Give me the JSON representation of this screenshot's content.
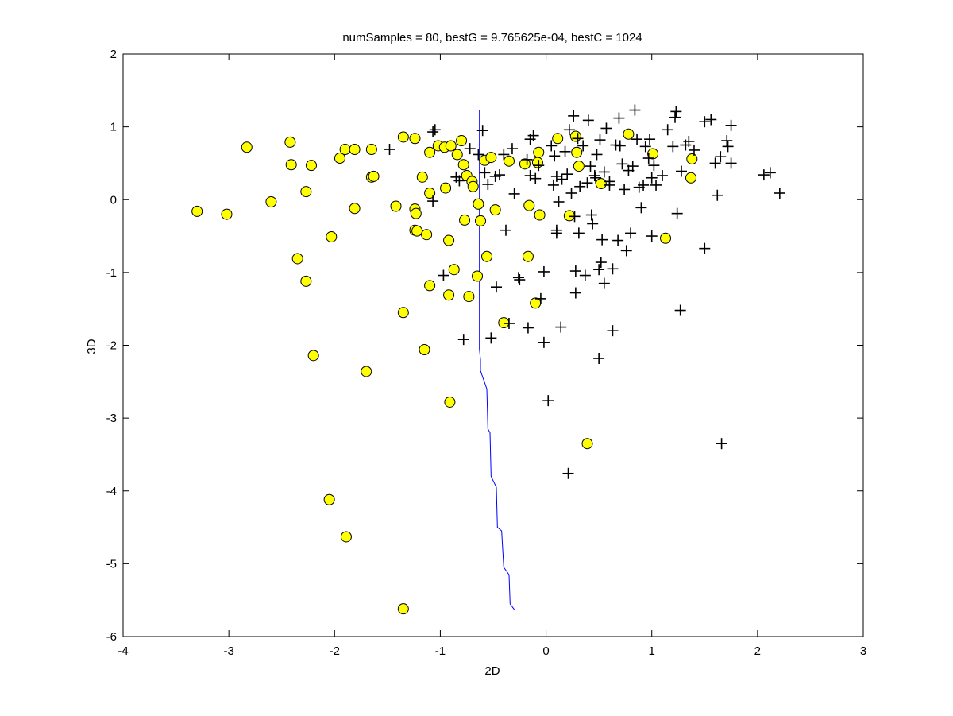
{
  "chart_data": {
    "type": "scatter",
    "title": "numSamples = 80, bestG = 9.765625e-04, bestC = 1024",
    "xlabel": "2D",
    "ylabel": "3D",
    "xlim": [
      -4,
      3
    ],
    "ylim": [
      -6,
      2
    ],
    "x_ticks": [
      "-4",
      "-3",
      "-2",
      "-1",
      "0",
      "1",
      "2",
      "3"
    ],
    "y_ticks": [
      "-6",
      "-5",
      "-4",
      "-3",
      "-2",
      "-1",
      "0",
      "1",
      "2"
    ],
    "colors": {
      "circles": "#ffff00",
      "circle_edge": "#000000",
      "plus": "#000000",
      "boundary": "#0000ff"
    },
    "grid": false,
    "series": [
      {
        "marker": "circle",
        "points": [
          [
            -3.3,
            -0.16
          ],
          [
            -3.02,
            -0.2
          ],
          [
            -2.83,
            0.72
          ],
          [
            -2.6,
            -0.03
          ],
          [
            -2.42,
            0.79
          ],
          [
            -2.41,
            0.48
          ],
          [
            -2.35,
            -0.81
          ],
          [
            -2.27,
            0.11
          ],
          [
            -2.27,
            -1.12
          ],
          [
            -2.22,
            0.47
          ],
          [
            -2.2,
            -2.14
          ],
          [
            -2.05,
            -4.12
          ],
          [
            -2.03,
            -0.51
          ],
          [
            -1.95,
            0.57
          ],
          [
            -1.9,
            0.69
          ],
          [
            -1.89,
            -4.63
          ],
          [
            -1.81,
            0.69
          ],
          [
            -1.81,
            -0.12
          ],
          [
            -1.7,
            -2.36
          ],
          [
            -1.65,
            0.69
          ],
          [
            -1.65,
            0.31
          ],
          [
            -1.63,
            0.32
          ],
          [
            -1.42,
            -0.09
          ],
          [
            -1.35,
            0.86
          ],
          [
            -1.35,
            -1.55
          ],
          [
            -1.35,
            -5.62
          ],
          [
            -1.24,
            0.84
          ],
          [
            -1.24,
            -0.13
          ],
          [
            -1.23,
            -0.19
          ],
          [
            -1.24,
            -0.42
          ],
          [
            -1.22,
            -0.43
          ],
          [
            -1.17,
            0.31
          ],
          [
            -1.15,
            -2.06
          ],
          [
            -1.13,
            -0.48
          ],
          [
            -1.1,
            -1.18
          ],
          [
            -1.1,
            0.09
          ],
          [
            -1.1,
            0.65
          ],
          [
            -1.02,
            0.74
          ],
          [
            -0.96,
            0.72
          ],
          [
            -0.95,
            0.16
          ],
          [
            -0.92,
            -0.56
          ],
          [
            -0.92,
            -1.31
          ],
          [
            -0.91,
            -2.78
          ],
          [
            -0.9,
            0.74
          ],
          [
            -0.87,
            -0.96
          ],
          [
            -0.84,
            0.62
          ],
          [
            -0.8,
            0.81
          ],
          [
            -0.78,
            0.48
          ],
          [
            -0.77,
            -0.28
          ],
          [
            -0.75,
            0.33
          ],
          [
            -0.73,
            -1.33
          ],
          [
            -0.7,
            0.25
          ],
          [
            -0.69,
            0.18
          ],
          [
            -0.65,
            -1.05
          ],
          [
            -0.64,
            -0.06
          ],
          [
            -0.62,
            -0.29
          ],
          [
            -0.58,
            0.54
          ],
          [
            -0.56,
            -0.78
          ],
          [
            -0.52,
            0.58
          ],
          [
            -0.48,
            -0.14
          ],
          [
            -0.4,
            -1.69
          ],
          [
            -0.35,
            0.53
          ],
          [
            -0.2,
            0.49
          ],
          [
            -0.16,
            -0.08
          ],
          [
            -0.17,
            -0.78
          ],
          [
            -0.1,
            -1.42
          ],
          [
            -0.08,
            0.51
          ],
          [
            -0.07,
            0.65
          ],
          [
            -0.06,
            -0.21
          ],
          [
            0.11,
            0.84
          ],
          [
            0.22,
            -0.22
          ],
          [
            0.28,
            0.87
          ],
          [
            0.29,
            0.65
          ],
          [
            0.31,
            0.46
          ],
          [
            0.39,
            -3.35
          ],
          [
            0.52,
            0.22
          ],
          [
            0.78,
            0.9
          ],
          [
            1.01,
            0.63
          ],
          [
            1.13,
            -0.53
          ],
          [
            1.37,
            0.3
          ],
          [
            1.38,
            0.56
          ]
        ]
      },
      {
        "marker": "plus",
        "points": [
          [
            -1.48,
            0.69
          ],
          [
            -1.07,
            0.93
          ],
          [
            -1.05,
            0.96
          ],
          [
            -1.07,
            -0.02
          ],
          [
            -0.97,
            -1.04
          ],
          [
            -0.85,
            0.31
          ],
          [
            -0.82,
            0.26
          ],
          [
            -0.78,
            -1.92
          ],
          [
            -0.72,
            0.7
          ],
          [
            -0.64,
            0.62
          ],
          [
            -0.6,
            0.95
          ],
          [
            -0.58,
            0.37
          ],
          [
            -0.55,
            0.21
          ],
          [
            -0.48,
            0.32
          ],
          [
            -0.52,
            -1.9
          ],
          [
            -0.47,
            -1.2
          ],
          [
            -0.44,
            0.34
          ],
          [
            -0.4,
            0.62
          ],
          [
            -0.38,
            -0.42
          ],
          [
            -0.35,
            -1.7
          ],
          [
            -0.32,
            0.7
          ],
          [
            -0.3,
            0.08
          ],
          [
            -0.26,
            -1.07
          ],
          [
            -0.25,
            -1.1
          ],
          [
            -0.18,
            0.55
          ],
          [
            -0.17,
            -1.76
          ],
          [
            -0.15,
            0.83
          ],
          [
            -0.15,
            0.33
          ],
          [
            -0.12,
            0.88
          ],
          [
            -0.1,
            0.29
          ],
          [
            -0.07,
            0.47
          ],
          [
            -0.05,
            -1.36
          ],
          [
            -0.02,
            -0.99
          ],
          [
            -0.02,
            -1.96
          ],
          [
            0.02,
            -2.76
          ],
          [
            0.05,
            0.74
          ],
          [
            0.07,
            0.2
          ],
          [
            0.08,
            0.6
          ],
          [
            0.1,
            0.32
          ],
          [
            0.1,
            -0.46
          ],
          [
            0.1,
            -0.42
          ],
          [
            0.12,
            -0.03
          ],
          [
            0.14,
            -1.75
          ],
          [
            0.15,
            0.28
          ],
          [
            0.18,
            0.66
          ],
          [
            0.2,
            0.35
          ],
          [
            0.21,
            -3.76
          ],
          [
            0.22,
            0.96
          ],
          [
            0.24,
            0.09
          ],
          [
            0.26,
            1.15
          ],
          [
            0.27,
            -0.23
          ],
          [
            0.28,
            -0.98
          ],
          [
            0.28,
            -1.28
          ],
          [
            0.3,
            0.84
          ],
          [
            0.31,
            -0.46
          ],
          [
            0.32,
            0.18
          ],
          [
            0.35,
            0.74
          ],
          [
            0.37,
            -1.04
          ],
          [
            0.39,
            0.23
          ],
          [
            0.4,
            1.09
          ],
          [
            0.42,
            0.46
          ],
          [
            0.43,
            -0.21
          ],
          [
            0.44,
            -0.33
          ],
          [
            0.46,
            0.33
          ],
          [
            0.47,
            0.3
          ],
          [
            0.48,
            0.62
          ],
          [
            0.5,
            -0.96
          ],
          [
            0.5,
            -2.18
          ],
          [
            0.51,
            0.82
          ],
          [
            0.52,
            -0.86
          ],
          [
            0.53,
            -0.55
          ],
          [
            0.55,
            0.38
          ],
          [
            0.55,
            -1.15
          ],
          [
            0.57,
            0.98
          ],
          [
            0.6,
            0.25
          ],
          [
            0.6,
            0.2
          ],
          [
            0.63,
            -0.95
          ],
          [
            0.63,
            -1.8
          ],
          [
            0.66,
            0.75
          ],
          [
            0.68,
            -0.56
          ],
          [
            0.69,
            1.12
          ],
          [
            0.7,
            0.74
          ],
          [
            0.72,
            0.49
          ],
          [
            0.74,
            0.14
          ],
          [
            0.76,
            -0.7
          ],
          [
            0.78,
            0.4
          ],
          [
            0.8,
            -0.46
          ],
          [
            0.82,
            0.46
          ],
          [
            0.84,
            1.23
          ],
          [
            0.86,
            0.83
          ],
          [
            0.88,
            0.17
          ],
          [
            0.9,
            -0.11
          ],
          [
            0.92,
            0.2
          ],
          [
            0.94,
            0.73
          ],
          [
            0.97,
            0.57
          ],
          [
            0.98,
            0.83
          ],
          [
            1.0,
            -0.5
          ],
          [
            1.0,
            0.3
          ],
          [
            1.02,
            0.47
          ],
          [
            1.04,
            0.2
          ],
          [
            1.1,
            0.33
          ],
          [
            1.15,
            0.96
          ],
          [
            1.2,
            0.73
          ],
          [
            1.22,
            1.13
          ],
          [
            1.23,
            1.21
          ],
          [
            1.24,
            -0.19
          ],
          [
            1.27,
            -1.52
          ],
          [
            1.28,
            0.39
          ],
          [
            1.32,
            0.75
          ],
          [
            1.35,
            0.8
          ],
          [
            1.4,
            0.68
          ],
          [
            1.5,
            1.07
          ],
          [
            1.5,
            -0.67
          ],
          [
            1.56,
            1.1
          ],
          [
            1.6,
            0.5
          ],
          [
            1.62,
            0.06
          ],
          [
            1.65,
            0.59
          ],
          [
            1.66,
            -3.35
          ],
          [
            1.71,
            0.81
          ],
          [
            1.72,
            0.73
          ],
          [
            1.75,
            1.02
          ],
          [
            1.75,
            0.5
          ],
          [
            2.06,
            0.34
          ],
          [
            2.12,
            0.37
          ],
          [
            2.21,
            0.09
          ]
        ]
      }
    ],
    "boundary": {
      "x": [
        -0.63,
        -0.63,
        -0.62,
        -0.62,
        -0.56,
        -0.55,
        -0.53,
        -0.52,
        -0.47,
        -0.46,
        -0.42,
        -0.4,
        -0.35,
        -0.34,
        -0.3
      ],
      "y": [
        1.23,
        -2.05,
        -2.2,
        -2.35,
        -2.6,
        -3.15,
        -3.2,
        -3.8,
        -3.95,
        -4.5,
        -4.55,
        -5.05,
        -5.15,
        -5.55,
        -5.63
      ]
    }
  }
}
